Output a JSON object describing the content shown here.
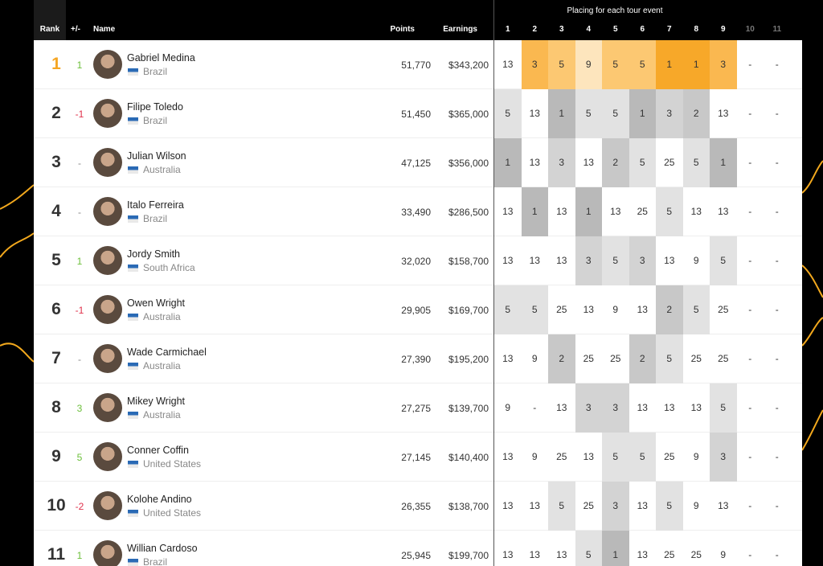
{
  "header": {
    "rank": "Rank",
    "change": "+/-",
    "name": "Name",
    "points": "Points",
    "earnings": "Earnings",
    "placing": "Placing for each tour event",
    "events": [
      "1",
      "2",
      "3",
      "4",
      "5",
      "6",
      "7",
      "8",
      "9",
      "10",
      "11"
    ]
  },
  "rows": [
    {
      "rank": "1",
      "change": "1",
      "name": "Gabriel Medina",
      "country": "Brazil",
      "points": "51,770",
      "earnings": "$343,200",
      "placings": [
        "13",
        "3",
        "5",
        "9",
        "5",
        "5",
        "1",
        "1",
        "3",
        "-",
        "-"
      ]
    },
    {
      "rank": "2",
      "change": "-1",
      "name": "Filipe Toledo",
      "country": "Brazil",
      "points": "51,450",
      "earnings": "$365,000",
      "placings": [
        "5",
        "13",
        "1",
        "5",
        "5",
        "1",
        "3",
        "2",
        "13",
        "-",
        "-"
      ]
    },
    {
      "rank": "3",
      "change": "-",
      "name": "Julian Wilson",
      "country": "Australia",
      "points": "47,125",
      "earnings": "$356,000",
      "placings": [
        "1",
        "13",
        "3",
        "13",
        "2",
        "5",
        "25",
        "5",
        "1",
        "-",
        "-"
      ]
    },
    {
      "rank": "4",
      "change": "-",
      "name": "Italo Ferreira",
      "country": "Brazil",
      "points": "33,490",
      "earnings": "$286,500",
      "placings": [
        "13",
        "1",
        "13",
        "1",
        "13",
        "25",
        "5",
        "13",
        "13",
        "-",
        "-"
      ]
    },
    {
      "rank": "5",
      "change": "1",
      "name": "Jordy Smith",
      "country": "South Africa",
      "points": "32,020",
      "earnings": "$158,700",
      "placings": [
        "13",
        "13",
        "13",
        "3",
        "5",
        "3",
        "13",
        "9",
        "5",
        "-",
        "-"
      ]
    },
    {
      "rank": "6",
      "change": "-1",
      "name": "Owen Wright",
      "country": "Australia",
      "points": "29,905",
      "earnings": "$169,700",
      "placings": [
        "5",
        "5",
        "25",
        "13",
        "9",
        "13",
        "2",
        "5",
        "25",
        "-",
        "-"
      ]
    },
    {
      "rank": "7",
      "change": "-",
      "name": "Wade Carmichael",
      "country": "Australia",
      "points": "27,390",
      "earnings": "$195,200",
      "placings": [
        "13",
        "9",
        "2",
        "25",
        "25",
        "2",
        "5",
        "25",
        "25",
        "-",
        "-"
      ]
    },
    {
      "rank": "8",
      "change": "3",
      "name": "Mikey Wright",
      "country": "Australia",
      "points": "27,275",
      "earnings": "$139,700",
      "placings": [
        "9",
        "-",
        "13",
        "3",
        "3",
        "13",
        "13",
        "13",
        "5",
        "-",
        "-"
      ]
    },
    {
      "rank": "9",
      "change": "5",
      "name": "Conner Coffin",
      "country": "United States",
      "points": "27,145",
      "earnings": "$140,400",
      "placings": [
        "13",
        "9",
        "25",
        "13",
        "5",
        "5",
        "25",
        "9",
        "3",
        "-",
        "-"
      ]
    },
    {
      "rank": "10",
      "change": "-2",
      "name": "Kolohe Andino",
      "country": "United States",
      "points": "26,355",
      "earnings": "$138,700",
      "placings": [
        "13",
        "13",
        "5",
        "25",
        "3",
        "13",
        "5",
        "9",
        "13",
        "-",
        "-"
      ]
    },
    {
      "rank": "11",
      "change": "1",
      "name": "Willian Cardoso",
      "country": "Brazil",
      "points": "25,945",
      "earnings": "$199,700",
      "placings": [
        "13",
        "13",
        "13",
        "5",
        "1",
        "13",
        "25",
        "25",
        "9",
        "-",
        "-"
      ]
    }
  ]
}
